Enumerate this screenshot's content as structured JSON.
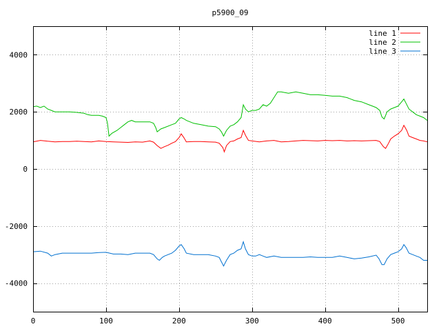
{
  "chart_data": {
    "type": "line",
    "title": "p5900_09",
    "xlabel": "",
    "ylabel": "",
    "xlim": [
      0,
      540
    ],
    "ylim": [
      -5000,
      5000
    ],
    "xticks": [
      0,
      100,
      200,
      300,
      400,
      500
    ],
    "yticks": [
      -4000,
      -2000,
      0,
      2000,
      4000
    ],
    "grid": true,
    "legend_position": "top-right",
    "series": [
      {
        "name": "line 1",
        "color": "#ff0000",
        "points": [
          [
            0,
            950
          ],
          [
            10,
            1000
          ],
          [
            20,
            970
          ],
          [
            30,
            950
          ],
          [
            40,
            960
          ],
          [
            50,
            960
          ],
          [
            60,
            970
          ],
          [
            70,
            960
          ],
          [
            80,
            950
          ],
          [
            90,
            980
          ],
          [
            100,
            960
          ],
          [
            110,
            950
          ],
          [
            120,
            940
          ],
          [
            130,
            930
          ],
          [
            140,
            950
          ],
          [
            150,
            940
          ],
          [
            160,
            980
          ],
          [
            165,
            940
          ],
          [
            170,
            820
          ],
          [
            175,
            720
          ],
          [
            180,
            780
          ],
          [
            185,
            830
          ],
          [
            190,
            900
          ],
          [
            195,
            960
          ],
          [
            200,
            1100
          ],
          [
            203,
            1230
          ],
          [
            207,
            1080
          ],
          [
            210,
            950
          ],
          [
            220,
            960
          ],
          [
            230,
            960
          ],
          [
            240,
            950
          ],
          [
            250,
            940
          ],
          [
            255,
            900
          ],
          [
            260,
            750
          ],
          [
            262,
            600
          ],
          [
            265,
            820
          ],
          [
            270,
            960
          ],
          [
            275,
            980
          ],
          [
            280,
            1050
          ],
          [
            285,
            1100
          ],
          [
            288,
            1350
          ],
          [
            291,
            1180
          ],
          [
            295,
            1000
          ],
          [
            300,
            980
          ],
          [
            310,
            950
          ],
          [
            320,
            980
          ],
          [
            330,
            1000
          ],
          [
            340,
            950
          ],
          [
            350,
            960
          ],
          [
            360,
            980
          ],
          [
            370,
            1000
          ],
          [
            380,
            990
          ],
          [
            390,
            980
          ],
          [
            400,
            1000
          ],
          [
            410,
            990
          ],
          [
            420,
            1000
          ],
          [
            430,
            980
          ],
          [
            440,
            990
          ],
          [
            450,
            980
          ],
          [
            460,
            990
          ],
          [
            470,
            1000
          ],
          [
            475,
            960
          ],
          [
            480,
            780
          ],
          [
            483,
            720
          ],
          [
            487,
            900
          ],
          [
            490,
            1050
          ],
          [
            495,
            1150
          ],
          [
            500,
            1230
          ],
          [
            505,
            1350
          ],
          [
            508,
            1530
          ],
          [
            512,
            1350
          ],
          [
            515,
            1150
          ],
          [
            520,
            1100
          ],
          [
            525,
            1050
          ],
          [
            530,
            1000
          ],
          [
            535,
            980
          ],
          [
            540,
            950
          ]
        ]
      },
      {
        "name": "line 2",
        "color": "#00c000",
        "points": [
          [
            0,
            2180
          ],
          [
            5,
            2200
          ],
          [
            10,
            2150
          ],
          [
            15,
            2200
          ],
          [
            20,
            2100
          ],
          [
            25,
            2050
          ],
          [
            30,
            2000
          ],
          [
            40,
            2000
          ],
          [
            50,
            2000
          ],
          [
            60,
            1980
          ],
          [
            70,
            1950
          ],
          [
            75,
            1900
          ],
          [
            80,
            1880
          ],
          [
            90,
            1880
          ],
          [
            95,
            1850
          ],
          [
            100,
            1800
          ],
          [
            102,
            1600
          ],
          [
            104,
            1150
          ],
          [
            108,
            1250
          ],
          [
            115,
            1350
          ],
          [
            120,
            1450
          ],
          [
            125,
            1550
          ],
          [
            130,
            1650
          ],
          [
            135,
            1700
          ],
          [
            140,
            1650
          ],
          [
            150,
            1650
          ],
          [
            160,
            1650
          ],
          [
            165,
            1600
          ],
          [
            168,
            1450
          ],
          [
            170,
            1300
          ],
          [
            175,
            1400
          ],
          [
            180,
            1450
          ],
          [
            190,
            1550
          ],
          [
            195,
            1600
          ],
          [
            200,
            1750
          ],
          [
            203,
            1800
          ],
          [
            207,
            1750
          ],
          [
            210,
            1700
          ],
          [
            220,
            1600
          ],
          [
            230,
            1550
          ],
          [
            240,
            1500
          ],
          [
            250,
            1480
          ],
          [
            255,
            1400
          ],
          [
            258,
            1300
          ],
          [
            261,
            1150
          ],
          [
            265,
            1350
          ],
          [
            270,
            1500
          ],
          [
            275,
            1550
          ],
          [
            280,
            1650
          ],
          [
            285,
            1800
          ],
          [
            288,
            2250
          ],
          [
            291,
            2100
          ],
          [
            295,
            2000
          ],
          [
            300,
            2050
          ],
          [
            305,
            2050
          ],
          [
            310,
            2100
          ],
          [
            315,
            2250
          ],
          [
            320,
            2200
          ],
          [
            325,
            2300
          ],
          [
            330,
            2500
          ],
          [
            335,
            2700
          ],
          [
            340,
            2700
          ],
          [
            350,
            2650
          ],
          [
            360,
            2700
          ],
          [
            370,
            2650
          ],
          [
            380,
            2600
          ],
          [
            390,
            2600
          ],
          [
            400,
            2580
          ],
          [
            410,
            2550
          ],
          [
            420,
            2550
          ],
          [
            430,
            2500
          ],
          [
            440,
            2400
          ],
          [
            450,
            2350
          ],
          [
            460,
            2250
          ],
          [
            465,
            2200
          ],
          [
            470,
            2150
          ],
          [
            475,
            2050
          ],
          [
            478,
            1820
          ],
          [
            481,
            1750
          ],
          [
            485,
            2000
          ],
          [
            490,
            2100
          ],
          [
            495,
            2150
          ],
          [
            500,
            2200
          ],
          [
            505,
            2350
          ],
          [
            508,
            2450
          ],
          [
            511,
            2300
          ],
          [
            515,
            2100
          ],
          [
            520,
            2000
          ],
          [
            525,
            1900
          ],
          [
            530,
            1850
          ],
          [
            535,
            1800
          ],
          [
            540,
            1700
          ]
        ]
      },
      {
        "name": "line 3",
        "color": "#0070d0",
        "points": [
          [
            0,
            -2900
          ],
          [
            10,
            -2880
          ],
          [
            20,
            -2950
          ],
          [
            25,
            -3050
          ],
          [
            30,
            -3000
          ],
          [
            40,
            -2950
          ],
          [
            50,
            -2950
          ],
          [
            60,
            -2950
          ],
          [
            70,
            -2950
          ],
          [
            80,
            -2950
          ],
          [
            90,
            -2930
          ],
          [
            100,
            -2920
          ],
          [
            110,
            -2980
          ],
          [
            120,
            -2980
          ],
          [
            130,
            -3000
          ],
          [
            140,
            -2950
          ],
          [
            150,
            -2950
          ],
          [
            160,
            -2950
          ],
          [
            165,
            -3000
          ],
          [
            170,
            -3150
          ],
          [
            173,
            -3200
          ],
          [
            177,
            -3100
          ],
          [
            180,
            -3050
          ],
          [
            185,
            -3000
          ],
          [
            190,
            -2950
          ],
          [
            195,
            -2850
          ],
          [
            200,
            -2700
          ],
          [
            203,
            -2650
          ],
          [
            207,
            -2800
          ],
          [
            210,
            -2950
          ],
          [
            220,
            -3000
          ],
          [
            230,
            -3000
          ],
          [
            240,
            -3000
          ],
          [
            250,
            -3050
          ],
          [
            255,
            -3100
          ],
          [
            258,
            -3250
          ],
          [
            261,
            -3400
          ],
          [
            265,
            -3200
          ],
          [
            270,
            -3000
          ],
          [
            275,
            -2950
          ],
          [
            280,
            -2850
          ],
          [
            285,
            -2800
          ],
          [
            288,
            -2550
          ],
          [
            291,
            -2800
          ],
          [
            295,
            -3000
          ],
          [
            300,
            -3050
          ],
          [
            305,
            -3050
          ],
          [
            310,
            -3000
          ],
          [
            315,
            -3050
          ],
          [
            320,
            -3100
          ],
          [
            330,
            -3050
          ],
          [
            340,
            -3100
          ],
          [
            350,
            -3100
          ],
          [
            360,
            -3100
          ],
          [
            370,
            -3100
          ],
          [
            380,
            -3080
          ],
          [
            390,
            -3100
          ],
          [
            400,
            -3100
          ],
          [
            410,
            -3100
          ],
          [
            420,
            -3050
          ],
          [
            430,
            -3100
          ],
          [
            440,
            -3150
          ],
          [
            450,
            -3120
          ],
          [
            460,
            -3080
          ],
          [
            470,
            -3020
          ],
          [
            474,
            -3150
          ],
          [
            478,
            -3350
          ],
          [
            481,
            -3350
          ],
          [
            485,
            -3150
          ],
          [
            490,
            -3000
          ],
          [
            495,
            -2950
          ],
          [
            500,
            -2900
          ],
          [
            505,
            -2800
          ],
          [
            508,
            -2650
          ],
          [
            511,
            -2750
          ],
          [
            515,
            -2950
          ],
          [
            520,
            -3000
          ],
          [
            525,
            -3050
          ],
          [
            530,
            -3100
          ],
          [
            535,
            -3200
          ],
          [
            540,
            -3200
          ]
        ]
      }
    ]
  }
}
